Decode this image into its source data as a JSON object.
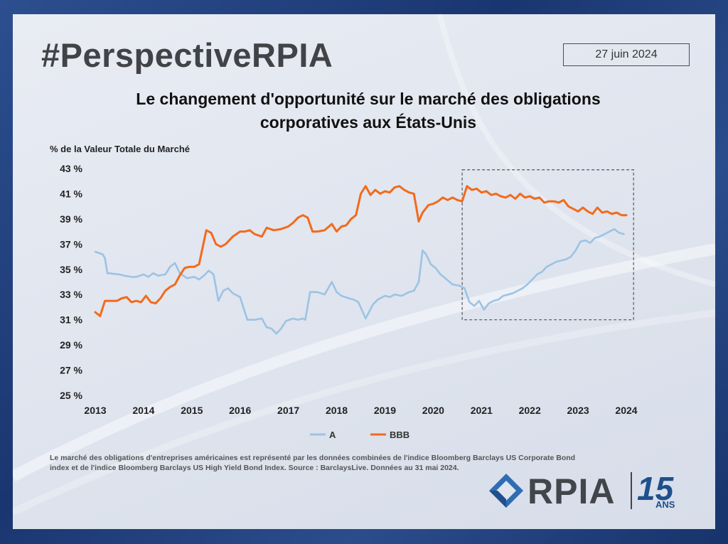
{
  "header": {
    "hashtag": "#PerspectiveRPIA",
    "date": "27 juin 2024"
  },
  "chart_data": {
    "type": "line",
    "title": "Le changement d'opportunité sur le marché des obligations corporatives aux États-Unis",
    "title_line1": "Le changement d'opportunité sur le marché des obligations",
    "title_line2": "corporatives aux États-Unis",
    "ylabel": "% de la Valeur Totale du Marché",
    "xlabel": "",
    "ylim": [
      25,
      43
    ],
    "xlim": [
      2013,
      2024
    ],
    "yticks": [
      "43 %",
      "41 %",
      "39 %",
      "37 %",
      "35 %",
      "33 %",
      "31 %",
      "29 %",
      "27 %",
      "25 %"
    ],
    "ytick_values": [
      43,
      41,
      39,
      37,
      35,
      33,
      31,
      29,
      27,
      25
    ],
    "xticks": [
      "2013",
      "2014",
      "2015",
      "2016",
      "2017",
      "2018",
      "2019",
      "2020",
      "2021",
      "2022",
      "2023",
      "2024"
    ],
    "xtick_values": [
      2013,
      2014,
      2015,
      2016,
      2017,
      2018,
      2019,
      2020,
      2021,
      2022,
      2023,
      2024
    ],
    "highlight_box": {
      "x0": 2020.6,
      "x1": 2024.15,
      "y0": 31.0,
      "y1": 42.9
    },
    "legend_position": "bottom-center",
    "series": [
      {
        "name": "A",
        "color": "#9cc3e4",
        "x": [
          2013.0,
          2013.15,
          2013.2,
          2013.25,
          2013.5,
          2013.6,
          2013.75,
          2013.85,
          2014.0,
          2014.1,
          2014.2,
          2014.3,
          2014.45,
          2014.55,
          2014.65,
          2014.75,
          2014.9,
          2015.05,
          2015.15,
          2015.25,
          2015.35,
          2015.45,
          2015.55,
          2015.65,
          2015.75,
          2015.85,
          2016.0,
          2016.15,
          2016.3,
          2016.45,
          2016.55,
          2016.65,
          2016.75,
          2016.85,
          2016.95,
          2017.1,
          2017.2,
          2017.3,
          2017.35,
          2017.45,
          2017.6,
          2017.75,
          2017.9,
          2018.0,
          2018.1,
          2018.25,
          2018.35,
          2018.45,
          2018.6,
          2018.75,
          2018.85,
          2019.0,
          2019.1,
          2019.2,
          2019.35,
          2019.5,
          2019.6,
          2019.7,
          2019.78,
          2019.85,
          2019.95,
          2020.05,
          2020.15,
          2020.25,
          2020.4,
          2020.55,
          2020.65,
          2020.75,
          2020.85,
          2020.95,
          2021.05,
          2021.15,
          2021.25,
          2021.35,
          2021.45,
          2021.55,
          2021.65,
          2021.75,
          2021.85,
          2021.95,
          2022.05,
          2022.15,
          2022.25,
          2022.35,
          2022.45,
          2022.55,
          2022.65,
          2022.75,
          2022.85,
          2022.95,
          2023.05,
          2023.15,
          2023.25,
          2023.35,
          2023.45,
          2023.55,
          2023.65,
          2023.75,
          2023.85,
          2023.95
        ],
        "values": [
          36.4,
          36.2,
          35.9,
          34.7,
          34.6,
          34.5,
          34.4,
          34.4,
          34.6,
          34.4,
          34.7,
          34.5,
          34.6,
          35.2,
          35.5,
          34.7,
          34.3,
          34.4,
          34.2,
          34.5,
          34.9,
          34.6,
          32.5,
          33.3,
          33.5,
          33.1,
          32.8,
          31.0,
          31.0,
          31.1,
          30.4,
          30.3,
          29.9,
          30.3,
          30.9,
          31.1,
          31.0,
          31.1,
          31.0,
          33.2,
          33.2,
          33.0,
          34.0,
          33.2,
          32.9,
          32.7,
          32.6,
          32.4,
          31.1,
          32.2,
          32.6,
          32.9,
          32.8,
          33.0,
          32.9,
          33.2,
          33.3,
          34.0,
          36.5,
          36.2,
          35.4,
          35.1,
          34.6,
          34.3,
          33.8,
          33.7,
          33.5,
          32.4,
          32.1,
          32.5,
          31.8,
          32.3,
          32.5,
          32.6,
          32.9,
          33.0,
          33.1,
          33.3,
          33.5,
          33.8,
          34.2,
          34.6,
          34.8,
          35.2,
          35.4,
          35.6,
          35.7,
          35.8,
          36.0,
          36.5,
          37.2,
          37.3,
          37.1,
          37.5,
          37.6,
          37.8,
          38.0,
          38.2,
          37.9,
          37.8
        ]
      },
      {
        "name": "BBB",
        "color": "#f26a1b",
        "x": [
          2013.0,
          2013.1,
          2013.2,
          2013.3,
          2013.45,
          2013.55,
          2013.65,
          2013.75,
          2013.85,
          2013.95,
          2014.05,
          2014.15,
          2014.25,
          2014.35,
          2014.45,
          2014.55,
          2014.65,
          2014.75,
          2014.85,
          2014.95,
          2015.05,
          2015.15,
          2015.3,
          2015.4,
          2015.5,
          2015.6,
          2015.7,
          2015.85,
          2016.0,
          2016.1,
          2016.2,
          2016.3,
          2016.45,
          2016.55,
          2016.7,
          2016.85,
          2017.0,
          2017.1,
          2017.2,
          2017.3,
          2017.4,
          2017.5,
          2017.6,
          2017.75,
          2017.9,
          2018.0,
          2018.1,
          2018.2,
          2018.3,
          2018.4,
          2018.5,
          2018.6,
          2018.7,
          2018.8,
          2018.9,
          2019.0,
          2019.1,
          2019.2,
          2019.3,
          2019.4,
          2019.5,
          2019.6,
          2019.7,
          2019.78,
          2019.9,
          2020.0,
          2020.1,
          2020.2,
          2020.3,
          2020.4,
          2020.5,
          2020.6,
          2020.7,
          2020.8,
          2020.9,
          2021.0,
          2021.1,
          2021.2,
          2021.3,
          2021.4,
          2021.5,
          2021.6,
          2021.7,
          2021.8,
          2021.9,
          2022.0,
          2022.1,
          2022.2,
          2022.3,
          2022.4,
          2022.5,
          2022.6,
          2022.7,
          2022.8,
          2022.9,
          2023.0,
          2023.1,
          2023.2,
          2023.3,
          2023.4,
          2023.5,
          2023.6,
          2023.7,
          2023.8,
          2023.9,
          2024.0
        ],
        "values": [
          31.6,
          31.3,
          32.5,
          32.5,
          32.5,
          32.7,
          32.8,
          32.4,
          32.5,
          32.4,
          32.9,
          32.4,
          32.3,
          32.7,
          33.3,
          33.6,
          33.8,
          34.5,
          35.1,
          35.2,
          35.2,
          35.4,
          38.1,
          37.9,
          37.0,
          36.8,
          37.0,
          37.6,
          38.0,
          38.0,
          38.1,
          37.8,
          37.6,
          38.3,
          38.1,
          38.2,
          38.4,
          38.7,
          39.1,
          39.3,
          39.1,
          38.0,
          38.0,
          38.1,
          38.6,
          38.0,
          38.4,
          38.5,
          39.0,
          39.3,
          41.0,
          41.6,
          40.9,
          41.3,
          41.0,
          41.2,
          41.1,
          41.5,
          41.6,
          41.3,
          41.1,
          41.0,
          38.8,
          39.5,
          40.1,
          40.2,
          40.4,
          40.7,
          40.5,
          40.7,
          40.5,
          40.4,
          41.6,
          41.3,
          41.4,
          41.1,
          41.2,
          40.9,
          41.0,
          40.8,
          40.7,
          40.9,
          40.6,
          41.0,
          40.7,
          40.8,
          40.6,
          40.7,
          40.3,
          40.4,
          40.4,
          40.3,
          40.5,
          40.0,
          39.8,
          39.6,
          39.9,
          39.6,
          39.4,
          39.9,
          39.5,
          39.6,
          39.4,
          39.5,
          39.3,
          39.3
        ]
      }
    ]
  },
  "footnote": "Le marché des obligations d'entreprises américaines est représenté par les données combinées de l'indice Bloomberg Barclays US Corporate Bond index et de l'indice Bloomberg Barclays US High Yield Bond Index. Source : BarclaysLive. Données au 31 mai 2024.",
  "logo": {
    "brand": "RPIA",
    "anniversary": "15",
    "anniversary_suffix": "ANS"
  },
  "colors": {
    "accent_blue": "#1f4f8c",
    "series_a": "#9cc3e4",
    "series_bbb": "#f26a1b"
  }
}
